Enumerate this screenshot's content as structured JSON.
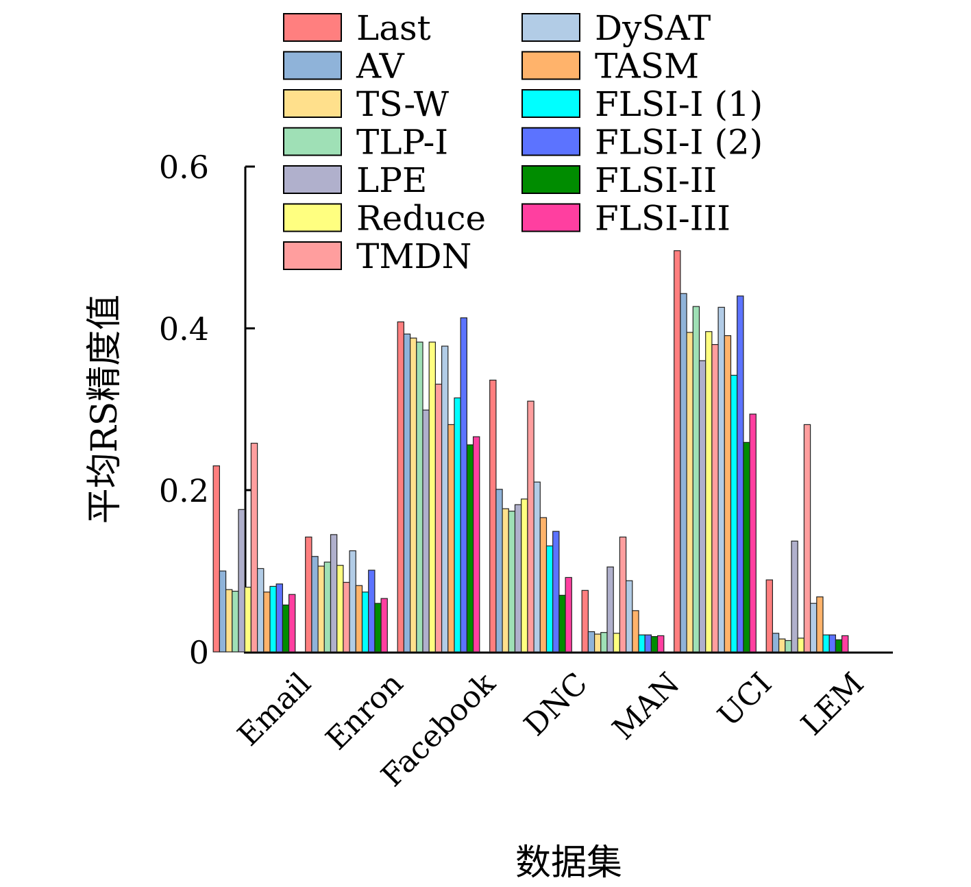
{
  "chart_data": {
    "type": "bar",
    "xlabel": "数据集",
    "ylabel": "平均RS精度值",
    "ylim": [
      0,
      0.6
    ],
    "yticks": [
      "0",
      "0.2",
      "0.4",
      "0.6"
    ],
    "grid": false,
    "legend_position": "top",
    "categories": [
      "Email",
      "Enron",
      "Facebook",
      "DNC",
      "MAN",
      "UCI",
      "LEM"
    ],
    "series": [
      {
        "name": "Last",
        "color": "#ff7f7f",
        "values": [
          0.23,
          0.142,
          0.408,
          0.336,
          0.076,
          0.496,
          0.089
        ]
      },
      {
        "name": "AV",
        "color": "#8fb3d9",
        "values": [
          0.1,
          0.118,
          0.393,
          0.201,
          0.025,
          0.443,
          0.023
        ]
      },
      {
        "name": "TS-W",
        "color": "#ffe08c",
        "values": [
          0.077,
          0.106,
          0.388,
          0.177,
          0.022,
          0.395,
          0.016
        ]
      },
      {
        "name": "TLP-I",
        "color": "#9fe0b6",
        "values": [
          0.075,
          0.111,
          0.383,
          0.174,
          0.024,
          0.427,
          0.014
        ]
      },
      {
        "name": "LPE",
        "color": "#b0b0cc",
        "values": [
          0.176,
          0.145,
          0.299,
          0.182,
          0.105,
          0.36,
          0.137
        ]
      },
      {
        "name": "Reduce",
        "color": "#ffff80",
        "values": [
          0.08,
          0.107,
          0.383,
          0.189,
          0.023,
          0.396,
          0.017
        ]
      },
      {
        "name": "TMDN",
        "color": "#ff9e9e",
        "values": [
          0.258,
          0.086,
          0.331,
          0.31,
          0.142,
          0.38,
          0.281
        ]
      },
      {
        "name": "DySAT",
        "color": "#b2cce6",
        "values": [
          0.103,
          0.125,
          0.378,
          0.21,
          0.088,
          0.426,
          0.06
        ]
      },
      {
        "name": "TASM",
        "color": "#ffb36b",
        "values": [
          0.074,
          0.082,
          0.281,
          0.166,
          0.051,
          0.391,
          0.068
        ]
      },
      {
        "name": "FLSI-I (1)",
        "color": "#00ffff",
        "values": [
          0.081,
          0.074,
          0.314,
          0.131,
          0.021,
          0.342,
          0.021
        ]
      },
      {
        "name": "FLSI-I (2)",
        "color": "#5c73ff",
        "values": [
          0.084,
          0.101,
          0.413,
          0.149,
          0.021,
          0.44,
          0.021
        ]
      },
      {
        "name": "FLSI-II",
        "color": "#008c00",
        "values": [
          0.058,
          0.06,
          0.256,
          0.07,
          0.019,
          0.259,
          0.015
        ]
      },
      {
        "name": "FLSI-III",
        "color": "#ff3fa0",
        "values": [
          0.071,
          0.066,
          0.266,
          0.092,
          0.02,
          0.294,
          0.02
        ]
      }
    ]
  }
}
